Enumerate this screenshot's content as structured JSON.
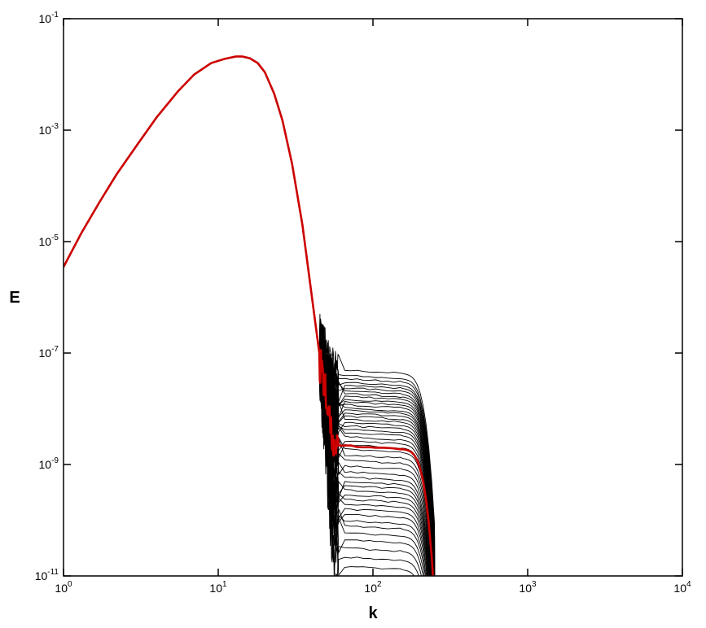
{
  "chart_data": {
    "type": "line",
    "xlabel": "k",
    "ylabel": "E",
    "xscale": "log",
    "yscale": "log",
    "xlim": [
      1,
      10000
    ],
    "ylim": [
      1e-11,
      0.1
    ],
    "grid": false,
    "legend": "none",
    "x_ticks": [
      {
        "value": 1,
        "base": "10",
        "exp": "0"
      },
      {
        "value": 10,
        "base": "10",
        "exp": "1"
      },
      {
        "value": 100,
        "base": "10",
        "exp": "2"
      },
      {
        "value": 1000,
        "base": "10",
        "exp": "3"
      },
      {
        "value": 10000,
        "base": "10",
        "exp": "4"
      }
    ],
    "y_ticks": [
      {
        "value": 1e-11,
        "base": "10",
        "exp": "-11"
      },
      {
        "value": 1e-09,
        "base": "10",
        "exp": "-9"
      },
      {
        "value": 1e-07,
        "base": "10",
        "exp": "-7"
      },
      {
        "value": 1e-05,
        "base": "10",
        "exp": "-5"
      },
      {
        "value": 0.001,
        "base": "10",
        "exp": "-3"
      },
      {
        "value": 0.1,
        "base": "10",
        "exp": "-1"
      }
    ],
    "spectrum_shape": {
      "x": [
        1.0,
        1.3,
        1.7,
        2.2,
        3.0,
        4.0,
        5.5,
        7.0,
        9.0,
        11.0,
        13.0,
        14.3,
        16.0,
        18.0,
        20.0,
        23.0,
        26.0,
        30.0,
        35.0,
        40.0,
        45.0
      ],
      "y": [
        3.5e-06,
        1.4e-05,
        5e-05,
        0.00016,
        0.00055,
        0.0017,
        0.005,
        0.01,
        0.016,
        0.019,
        0.021,
        0.021,
        0.0195,
        0.016,
        0.011,
        0.0045,
        0.0015,
        0.00025,
        2e-05,
        1.2e-06,
        1e-07
      ]
    },
    "ensemble": {
      "color": "#000000",
      "noise_range": [
        45,
        60
      ],
      "plateau_end": 150,
      "cutoff": 250,
      "plateau_levels": [
        5e-08,
        4e-08,
        3.5e-08,
        3e-08,
        2.7e-08,
        2.4e-08,
        2.1e-08,
        1.9e-08,
        1.7e-08,
        1.5e-08,
        1.35e-08,
        1.2e-08,
        1.05e-08,
        9.5e-09,
        8.5e-09,
        7.5e-09,
        6.6e-09,
        5.8e-09,
        5e-09,
        4.4e-09,
        3.8e-09,
        3.2e-09,
        2.7e-09,
        2.3e-09,
        1.9e-09,
        1.5e-09,
        1.2e-09,
        9.5e-10,
        7.5e-10,
        6e-10,
        5e-10,
        4.2e-10,
        3.5e-10,
        2.9e-10,
        2.4e-10,
        2e-10,
        1.6e-10,
        1.3e-10,
        1e-10,
        8e-11,
        6e-11,
        4.5e-11,
        3.2e-11,
        2.2e-11,
        1.5e-11
      ]
    },
    "highlight": {
      "color": "#cc0000",
      "plateau_level": 2.2e-09,
      "noise_range": [
        45,
        60
      ],
      "cutoff": 250
    }
  }
}
